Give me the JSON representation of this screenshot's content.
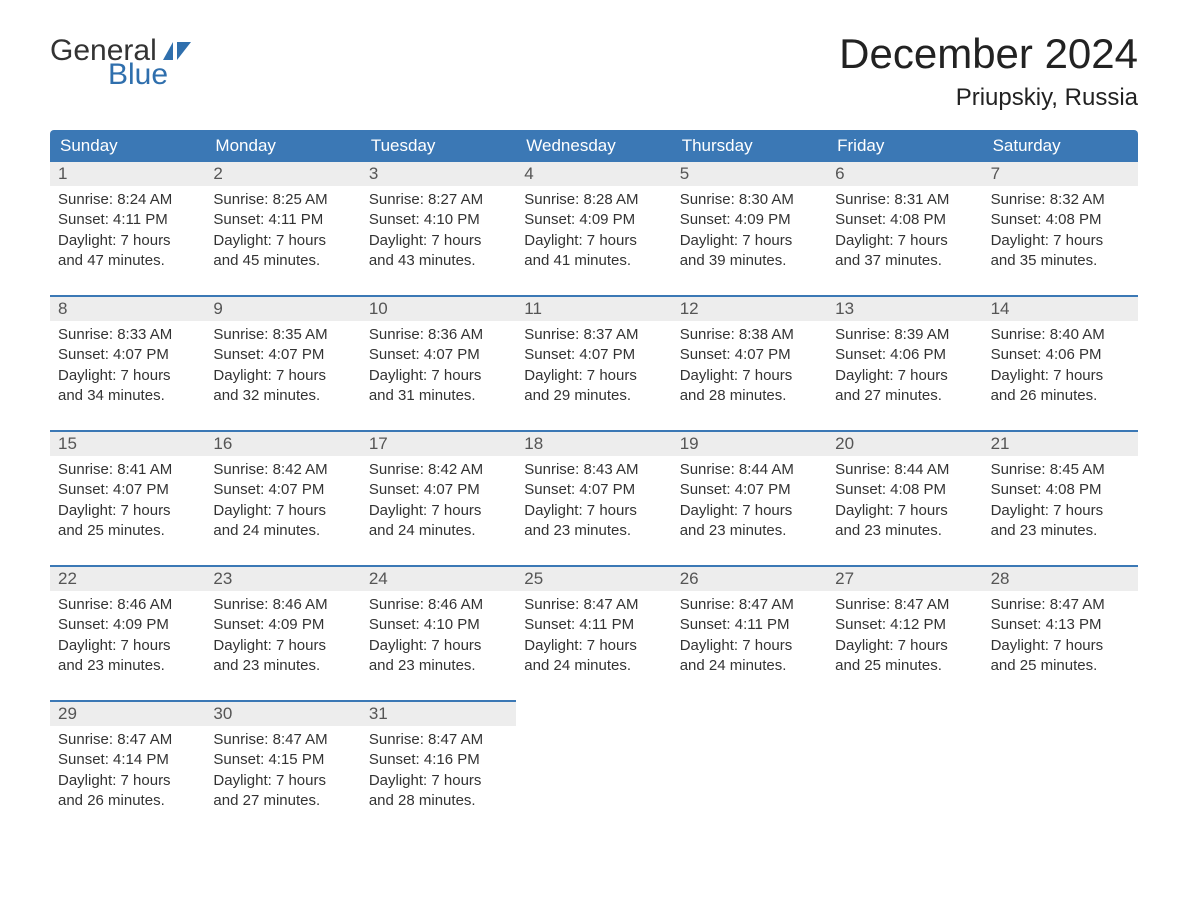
{
  "logo": {
    "word1": "General",
    "word2": "Blue"
  },
  "title": "December 2024",
  "location": "Priupskiy, Russia",
  "colors": {
    "header_bg": "#3b78b5",
    "header_text": "#ffffff",
    "accent_border": "#3b78b5",
    "daynum_bg": "#ededed",
    "text": "#333333",
    "logo_blue": "#2f6fad",
    "page_bg": "#ffffff"
  },
  "day_names": [
    "Sunday",
    "Monday",
    "Tuesday",
    "Wednesday",
    "Thursday",
    "Friday",
    "Saturday"
  ],
  "weeks": [
    [
      {
        "n": "1",
        "sunrise": "Sunrise: 8:24 AM",
        "sunset": "Sunset: 4:11 PM",
        "d1": "Daylight: 7 hours",
        "d2": "and 47 minutes."
      },
      {
        "n": "2",
        "sunrise": "Sunrise: 8:25 AM",
        "sunset": "Sunset: 4:11 PM",
        "d1": "Daylight: 7 hours",
        "d2": "and 45 minutes."
      },
      {
        "n": "3",
        "sunrise": "Sunrise: 8:27 AM",
        "sunset": "Sunset: 4:10 PM",
        "d1": "Daylight: 7 hours",
        "d2": "and 43 minutes."
      },
      {
        "n": "4",
        "sunrise": "Sunrise: 8:28 AM",
        "sunset": "Sunset: 4:09 PM",
        "d1": "Daylight: 7 hours",
        "d2": "and 41 minutes."
      },
      {
        "n": "5",
        "sunrise": "Sunrise: 8:30 AM",
        "sunset": "Sunset: 4:09 PM",
        "d1": "Daylight: 7 hours",
        "d2": "and 39 minutes."
      },
      {
        "n": "6",
        "sunrise": "Sunrise: 8:31 AM",
        "sunset": "Sunset: 4:08 PM",
        "d1": "Daylight: 7 hours",
        "d2": "and 37 minutes."
      },
      {
        "n": "7",
        "sunrise": "Sunrise: 8:32 AM",
        "sunset": "Sunset: 4:08 PM",
        "d1": "Daylight: 7 hours",
        "d2": "and 35 minutes."
      }
    ],
    [
      {
        "n": "8",
        "sunrise": "Sunrise: 8:33 AM",
        "sunset": "Sunset: 4:07 PM",
        "d1": "Daylight: 7 hours",
        "d2": "and 34 minutes."
      },
      {
        "n": "9",
        "sunrise": "Sunrise: 8:35 AM",
        "sunset": "Sunset: 4:07 PM",
        "d1": "Daylight: 7 hours",
        "d2": "and 32 minutes."
      },
      {
        "n": "10",
        "sunrise": "Sunrise: 8:36 AM",
        "sunset": "Sunset: 4:07 PM",
        "d1": "Daylight: 7 hours",
        "d2": "and 31 minutes."
      },
      {
        "n": "11",
        "sunrise": "Sunrise: 8:37 AM",
        "sunset": "Sunset: 4:07 PM",
        "d1": "Daylight: 7 hours",
        "d2": "and 29 minutes."
      },
      {
        "n": "12",
        "sunrise": "Sunrise: 8:38 AM",
        "sunset": "Sunset: 4:07 PM",
        "d1": "Daylight: 7 hours",
        "d2": "and 28 minutes."
      },
      {
        "n": "13",
        "sunrise": "Sunrise: 8:39 AM",
        "sunset": "Sunset: 4:06 PM",
        "d1": "Daylight: 7 hours",
        "d2": "and 27 minutes."
      },
      {
        "n": "14",
        "sunrise": "Sunrise: 8:40 AM",
        "sunset": "Sunset: 4:06 PM",
        "d1": "Daylight: 7 hours",
        "d2": "and 26 minutes."
      }
    ],
    [
      {
        "n": "15",
        "sunrise": "Sunrise: 8:41 AM",
        "sunset": "Sunset: 4:07 PM",
        "d1": "Daylight: 7 hours",
        "d2": "and 25 minutes."
      },
      {
        "n": "16",
        "sunrise": "Sunrise: 8:42 AM",
        "sunset": "Sunset: 4:07 PM",
        "d1": "Daylight: 7 hours",
        "d2": "and 24 minutes."
      },
      {
        "n": "17",
        "sunrise": "Sunrise: 8:42 AM",
        "sunset": "Sunset: 4:07 PM",
        "d1": "Daylight: 7 hours",
        "d2": "and 24 minutes."
      },
      {
        "n": "18",
        "sunrise": "Sunrise: 8:43 AM",
        "sunset": "Sunset: 4:07 PM",
        "d1": "Daylight: 7 hours",
        "d2": "and 23 minutes."
      },
      {
        "n": "19",
        "sunrise": "Sunrise: 8:44 AM",
        "sunset": "Sunset: 4:07 PM",
        "d1": "Daylight: 7 hours",
        "d2": "and 23 minutes."
      },
      {
        "n": "20",
        "sunrise": "Sunrise: 8:44 AM",
        "sunset": "Sunset: 4:08 PM",
        "d1": "Daylight: 7 hours",
        "d2": "and 23 minutes."
      },
      {
        "n": "21",
        "sunrise": "Sunrise: 8:45 AM",
        "sunset": "Sunset: 4:08 PM",
        "d1": "Daylight: 7 hours",
        "d2": "and 23 minutes."
      }
    ],
    [
      {
        "n": "22",
        "sunrise": "Sunrise: 8:46 AM",
        "sunset": "Sunset: 4:09 PM",
        "d1": "Daylight: 7 hours",
        "d2": "and 23 minutes."
      },
      {
        "n": "23",
        "sunrise": "Sunrise: 8:46 AM",
        "sunset": "Sunset: 4:09 PM",
        "d1": "Daylight: 7 hours",
        "d2": "and 23 minutes."
      },
      {
        "n": "24",
        "sunrise": "Sunrise: 8:46 AM",
        "sunset": "Sunset: 4:10 PM",
        "d1": "Daylight: 7 hours",
        "d2": "and 23 minutes."
      },
      {
        "n": "25",
        "sunrise": "Sunrise: 8:47 AM",
        "sunset": "Sunset: 4:11 PM",
        "d1": "Daylight: 7 hours",
        "d2": "and 24 minutes."
      },
      {
        "n": "26",
        "sunrise": "Sunrise: 8:47 AM",
        "sunset": "Sunset: 4:11 PM",
        "d1": "Daylight: 7 hours",
        "d2": "and 24 minutes."
      },
      {
        "n": "27",
        "sunrise": "Sunrise: 8:47 AM",
        "sunset": "Sunset: 4:12 PM",
        "d1": "Daylight: 7 hours",
        "d2": "and 25 minutes."
      },
      {
        "n": "28",
        "sunrise": "Sunrise: 8:47 AM",
        "sunset": "Sunset: 4:13 PM",
        "d1": "Daylight: 7 hours",
        "d2": "and 25 minutes."
      }
    ],
    [
      {
        "n": "29",
        "sunrise": "Sunrise: 8:47 AM",
        "sunset": "Sunset: 4:14 PM",
        "d1": "Daylight: 7 hours",
        "d2": "and 26 minutes."
      },
      {
        "n": "30",
        "sunrise": "Sunrise: 8:47 AM",
        "sunset": "Sunset: 4:15 PM",
        "d1": "Daylight: 7 hours",
        "d2": "and 27 minutes."
      },
      {
        "n": "31",
        "sunrise": "Sunrise: 8:47 AM",
        "sunset": "Sunset: 4:16 PM",
        "d1": "Daylight: 7 hours",
        "d2": "and 28 minutes."
      },
      {
        "empty": true
      },
      {
        "empty": true
      },
      {
        "empty": true
      },
      {
        "empty": true
      }
    ]
  ]
}
